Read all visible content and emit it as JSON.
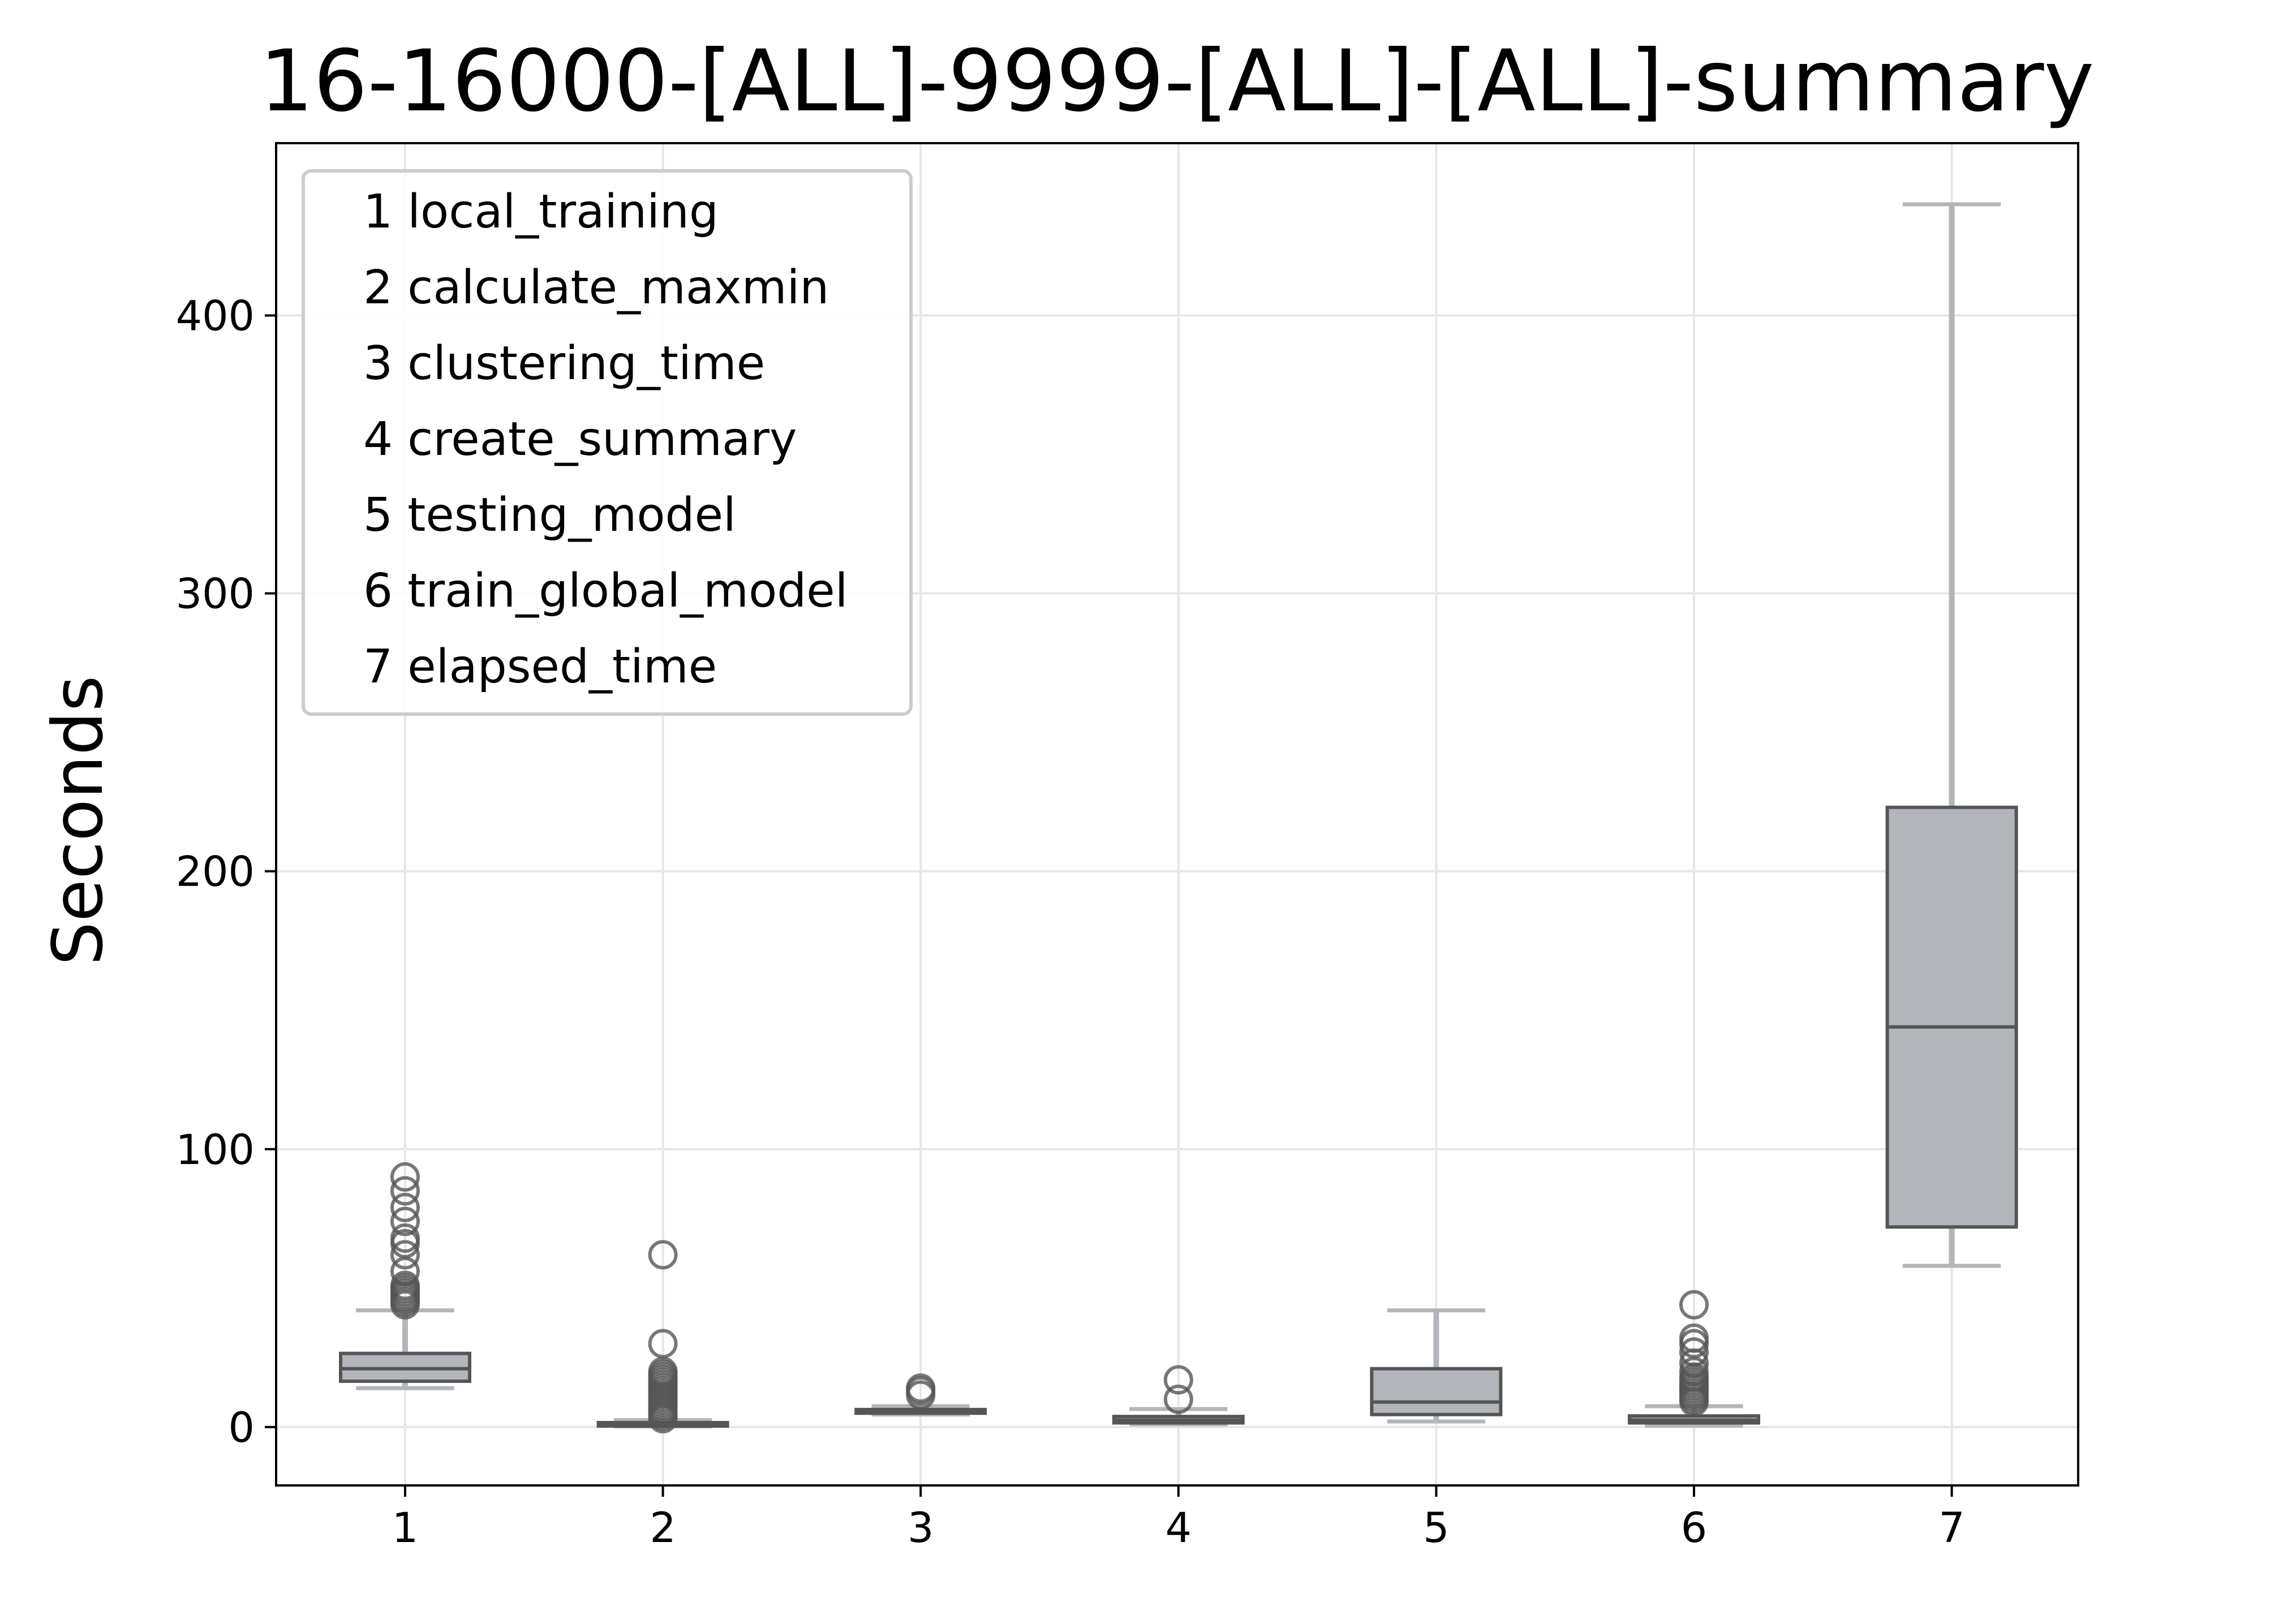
{
  "chart_data": {
    "type": "box",
    "title": "16-16000-[ALL]-9999-[ALL]-[ALL]-summary",
    "xlabel": "",
    "ylabel": "Seconds",
    "categories": [
      "1",
      "2",
      "3",
      "4",
      "5",
      "6",
      "7"
    ],
    "yticks": [
      0,
      100,
      200,
      300,
      400
    ],
    "ylim": [
      -21,
      462
    ],
    "grid": true,
    "legend_position": "top-left",
    "legend": [
      "1 local_training",
      "2 calculate_maxmin",
      "3 clustering_time",
      "4 create_summary",
      "5 testing_model",
      "6 train_global_model",
      "7 elapsed_time"
    ],
    "boxes": [
      {
        "category": "1",
        "whisker_low": 14,
        "q1": 16.5,
        "median": 21,
        "q3": 26.5,
        "whisker_high": 42,
        "outliers": [
          44,
          45,
          46,
          47,
          48,
          49,
          50,
          51,
          56,
          62,
          66,
          68,
          74,
          79,
          85,
          90
        ]
      },
      {
        "category": "2",
        "whisker_low": 0.2,
        "q1": 0.6,
        "median": 1.0,
        "q3": 1.6,
        "whisker_high": 2.5,
        "outliers": [
          3,
          4,
          5,
          6,
          7,
          8,
          9,
          10,
          11,
          12,
          13,
          14,
          15,
          16,
          17,
          18,
          19,
          20,
          30,
          62
        ]
      },
      {
        "category": "3",
        "whisker_low": 4.5,
        "q1": 5.0,
        "median": 5.6,
        "q3": 6.3,
        "whisker_high": 7.5,
        "outliers": [
          11.5,
          13,
          14
        ]
      },
      {
        "category": "4",
        "whisker_low": 1.0,
        "q1": 1.5,
        "median": 2.5,
        "q3": 3.8,
        "whisker_high": 6.5,
        "outliers": [
          10,
          17
        ]
      },
      {
        "category": "5",
        "whisker_low": 2.0,
        "q1": 4.5,
        "median": 9.0,
        "q3": 21.0,
        "whisker_high": 42.0,
        "outliers": []
      },
      {
        "category": "6",
        "whisker_low": 0.5,
        "q1": 1.5,
        "median": 2.5,
        "q3": 4.0,
        "whisker_high": 7.5,
        "outliers": [
          9,
          10,
          11,
          12,
          13,
          14,
          15,
          16,
          17,
          18,
          20,
          23,
          27,
          30,
          32,
          44
        ]
      },
      {
        "category": "7",
        "whisker_low": 58,
        "q1": 72,
        "median": 144,
        "q3": 223,
        "whisker_high": 440,
        "outliers": []
      }
    ],
    "colors": {
      "box_fill": "#b2b5ba",
      "box_edge": "#555555",
      "whisker": "#b2b5ba",
      "outlier_edge": "#555555",
      "grid": "#e6e6e6",
      "axes": "#000000",
      "legend_edge": "#cccccc"
    }
  }
}
